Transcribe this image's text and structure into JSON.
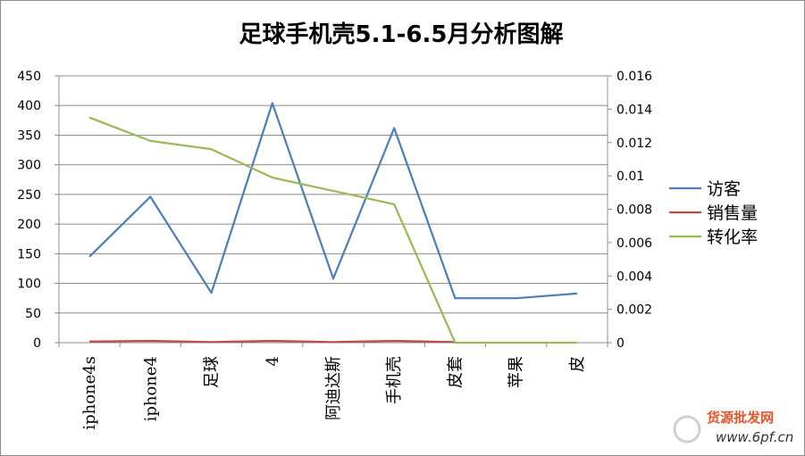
{
  "chart_data": {
    "type": "line",
    "title": "足球手机壳5.1-6.5月分析图解",
    "categories": [
      "iphone4s",
      "iphone4",
      "足球",
      "4",
      "阿迪达斯",
      "手机壳",
      "皮套",
      "苹果",
      "皮"
    ],
    "y_left": {
      "ticks": [
        "0",
        "50",
        "100",
        "150",
        "200",
        "250",
        "300",
        "350",
        "400",
        "450"
      ],
      "ylim": [
        0,
        450
      ]
    },
    "y_right": {
      "ticks": [
        "0",
        "0.002",
        "0.004",
        "0.006",
        "0.008",
        "0.01",
        "0.012",
        "0.014",
        "0.016"
      ],
      "ylim": [
        0,
        0.016
      ]
    },
    "grid": "horizontal",
    "legend_position": "right",
    "series": [
      {
        "name": "访客",
        "axis": "left",
        "color": "#4a7ebb",
        "values": [
          145,
          246,
          84,
          404,
          108,
          362,
          75,
          75,
          83
        ]
      },
      {
        "name": "销售量",
        "axis": "left",
        "color": "#be4b48",
        "values": [
          2,
          3,
          1,
          3,
          1,
          3,
          1,
          null,
          null
        ]
      },
      {
        "name": "转化率",
        "axis": "right",
        "color": "#98b954",
        "values": [
          0.0135,
          0.0121,
          0.0116,
          0.0099,
          0.0091,
          0.0083,
          0,
          0,
          0
        ]
      }
    ]
  },
  "watermark": {
    "line1": "货源批发网",
    "line2": "www.6pf.cn"
  }
}
